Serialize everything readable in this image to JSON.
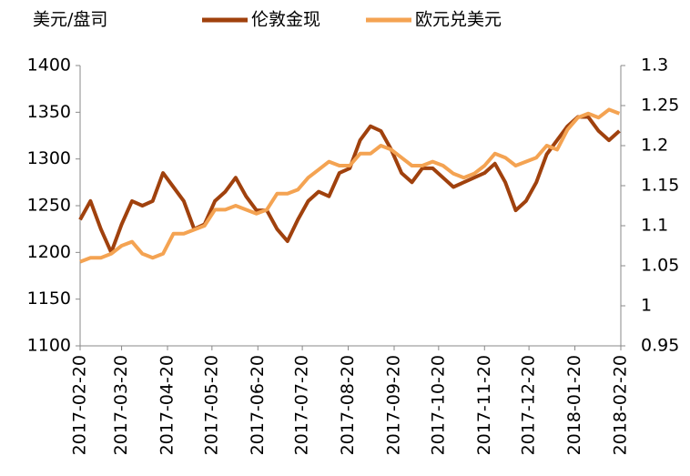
{
  "chart_data": {
    "type": "line",
    "y_label": "美元/盘司",
    "x": [
      "2017-02-20",
      "2017-02-27",
      "2017-03-06",
      "2017-03-13",
      "2017-03-20",
      "2017-03-27",
      "2017-04-03",
      "2017-04-10",
      "2017-04-17",
      "2017-04-24",
      "2017-05-01",
      "2017-05-08",
      "2017-05-15",
      "2017-05-22",
      "2017-05-29",
      "2017-06-05",
      "2017-06-12",
      "2017-06-19",
      "2017-06-26",
      "2017-07-03",
      "2017-07-10",
      "2017-07-17",
      "2017-07-24",
      "2017-07-31",
      "2017-08-07",
      "2017-08-14",
      "2017-08-21",
      "2017-08-28",
      "2017-09-04",
      "2017-09-11",
      "2017-09-18",
      "2017-09-25",
      "2017-10-02",
      "2017-10-09",
      "2017-10-16",
      "2017-10-23",
      "2017-10-30",
      "2017-11-06",
      "2017-11-13",
      "2017-11-20",
      "2017-11-27",
      "2017-12-04",
      "2017-12-11",
      "2017-12-18",
      "2017-12-25",
      "2018-01-01",
      "2018-01-08",
      "2018-01-15",
      "2018-01-22",
      "2018-01-29",
      "2018-02-05",
      "2018-02-12",
      "2018-02-19"
    ],
    "series": [
      {
        "name": "伦敦金现",
        "color": "#a0410d",
        "axis": "y",
        "values": [
          1235,
          1255,
          1225,
          1200,
          1230,
          1255,
          1250,
          1255,
          1285,
          1270,
          1255,
          1225,
          1230,
          1255,
          1265,
          1280,
          1260,
          1245,
          1245,
          1225,
          1212,
          1235,
          1255,
          1265,
          1260,
          1285,
          1290,
          1320,
          1335,
          1330,
          1310,
          1285,
          1275,
          1290,
          1290,
          1280,
          1270,
          1275,
          1280,
          1285,
          1295,
          1275,
          1245,
          1255,
          1275,
          1305,
          1320,
          1335,
          1345,
          1345,
          1330,
          1320,
          1330
        ]
      },
      {
        "name": "欧元兑美元",
        "color": "#f4a352",
        "axis": "y2",
        "values": [
          1.055,
          1.06,
          1.06,
          1.065,
          1.075,
          1.08,
          1.065,
          1.06,
          1.065,
          1.09,
          1.09,
          1.095,
          1.1,
          1.12,
          1.12,
          1.125,
          1.12,
          1.115,
          1.12,
          1.14,
          1.14,
          1.145,
          1.16,
          1.17,
          1.18,
          1.175,
          1.175,
          1.19,
          1.19,
          1.2,
          1.195,
          1.185,
          1.175,
          1.175,
          1.18,
          1.175,
          1.165,
          1.16,
          1.165,
          1.175,
          1.19,
          1.185,
          1.175,
          1.18,
          1.185,
          1.2,
          1.195,
          1.22,
          1.235,
          1.24,
          1.235,
          1.245,
          1.24
        ]
      }
    ],
    "xlim": [
      "2017-02-20",
      "2018-02-20"
    ],
    "xticks": [
      "2017-02-20",
      "2017-03-20",
      "2017-04-20",
      "2017-05-20",
      "2017-06-20",
      "2017-07-20",
      "2017-08-20",
      "2017-09-20",
      "2017-10-20",
      "2017-11-20",
      "2017-12-20",
      "2018-01-20",
      "2018-02-20"
    ],
    "ylim": [
      1100,
      1400
    ],
    "yticks": [
      1100,
      1150,
      1200,
      1250,
      1300,
      1350,
      1400
    ],
    "y2lim": [
      0.95,
      1.3
    ],
    "y2ticks": [
      0.95,
      1,
      1.05,
      1.1,
      1.15,
      1.2,
      1.25,
      1.3
    ],
    "grid": false,
    "legend": "top"
  }
}
